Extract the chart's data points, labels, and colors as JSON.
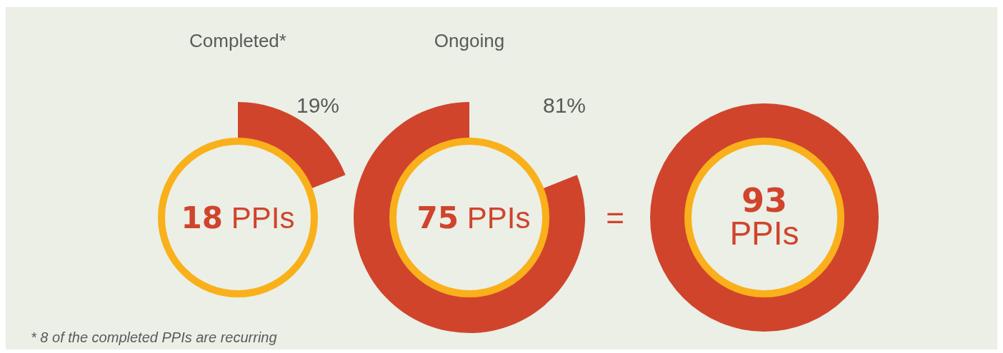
{
  "chart_data": {
    "type": "other",
    "categories": [
      "Completed*",
      "Ongoing"
    ],
    "values": [
      19,
      81
    ],
    "colors": [
      "#d0442c",
      "#d0442c"
    ],
    "value_labels": [
      "19%",
      "81%"
    ],
    "annotations": [
      "18 PPIs",
      "75 PPIs",
      "=",
      "93 PPIs",
      "* 8 of the completed PPIs are recurring"
    ]
  }
}
